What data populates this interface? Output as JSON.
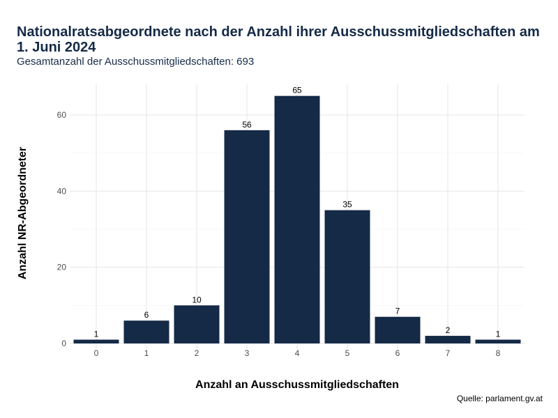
{
  "chart_data": {
    "type": "bar",
    "title": "Nationalratsabgeordnete nach der Anzahl ihrer Ausschussmitgliedschaften am 1. Juni 2024",
    "subtitle": "Gesamtanzahl der Ausschussmitgliedschaften: 693",
    "xlabel": "Anzahl an Ausschussmitgliedschaften",
    "ylabel": "Anzahl NR-Abgeordneter",
    "caption": "Quelle: parlament.gv.at",
    "categories": [
      "0",
      "1",
      "2",
      "3",
      "4",
      "5",
      "6",
      "7",
      "8"
    ],
    "values": [
      1,
      6,
      10,
      56,
      65,
      35,
      7,
      2,
      1
    ],
    "yticks": [
      0,
      20,
      40,
      60
    ],
    "ylim": [
      0,
      68
    ],
    "grid": true,
    "bar_color": "#152a47"
  }
}
